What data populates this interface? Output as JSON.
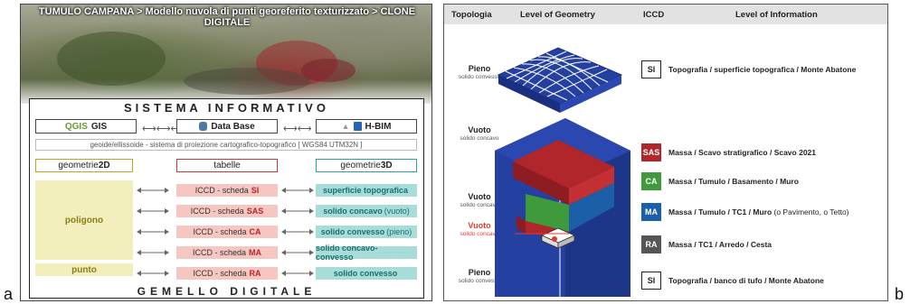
{
  "panel_a": {
    "letter": "a",
    "title": "TUMULO CAMPANA > Modello nuvola di punti georeferito texturizzato > CLONE DIGITALE",
    "system_title": "SISTEMA INFORMATIVO",
    "tools": {
      "gis_logo": "QGIS",
      "gis_label": "GIS",
      "db_label": "Data Base",
      "hbim_label": "H-BIM"
    },
    "geoid_text": "geoide/ellissoide - sistema di proiezione cartografico-topografico [ WGS84 UTM32N ]",
    "columns": {
      "geom2d_prefix": "geometrie ",
      "geom2d_suffix": "2D",
      "tables": "tabelle",
      "geom3d_prefix": "geometrie ",
      "geom3d_suffix": "3D"
    },
    "poligono": "poligono",
    "punto": "punto",
    "rows": [
      {
        "prefix": "ICCD - scheda",
        "code": "SI",
        "geo": "superficie topografica",
        "note": ""
      },
      {
        "prefix": "ICCD - scheda",
        "code": "SAS",
        "geo": "solido concavo",
        "note": "(vuoto)"
      },
      {
        "prefix": "ICCD - scheda",
        "code": "CA",
        "geo": "solido convesso",
        "note": "(pieno)"
      },
      {
        "prefix": "ICCD - scheda",
        "code": "MA",
        "geo": "solido concavo-convesso",
        "note": ""
      },
      {
        "prefix": "ICCD - scheda",
        "code": "RA",
        "geo": "solido convesso",
        "note": ""
      }
    ],
    "footer": "GEMELLO DIGITALE"
  },
  "panel_b": {
    "letter": "b",
    "headers": {
      "topologia": "Topologia",
      "geometry": "Level of Geometry",
      "iccd": "ICCD",
      "information": "Level of Information"
    },
    "levels": [
      {
        "label": "Pieno",
        "sub": "solido convesso"
      },
      {
        "label": "Vuoto",
        "sub": "solido concavo"
      },
      {
        "label": "Vuoto",
        "sub": "solido concavo"
      },
      {
        "label": "Vuoto",
        "sub": "solido concavo"
      },
      {
        "label": "Pieno",
        "sub": "solido convesso"
      }
    ],
    "entries": [
      {
        "code": "SI",
        "text": "Topografia / superficie topografica / Monte Abatone",
        "extra": ""
      },
      {
        "code": "SAS",
        "text": "Massa / Scavo stratigrafico / Scavo 2021",
        "extra": ""
      },
      {
        "code": "CA",
        "text": "Massa / Tumulo / Basamento / Muro",
        "extra": ""
      },
      {
        "code": "MA",
        "text": "Massa / Tumulo / TC1 / Muro",
        "extra": "(o Pavimento, o Tetto)"
      },
      {
        "code": "RA",
        "text": "Massa / TC1 / Arredo / Cesta",
        "extra": ""
      },
      {
        "code": "SI",
        "text": "Topografia / banco di tufo / Monte Abatone",
        "extra": ""
      }
    ]
  },
  "colors": {
    "si": "#ffffff",
    "sas": "#b0262a",
    "ca": "#3e9a3a",
    "ma": "#1b5fa8",
    "ra": "#555555",
    "volume_blue": "#2440a0",
    "highlight_red": "#e23b2e"
  }
}
